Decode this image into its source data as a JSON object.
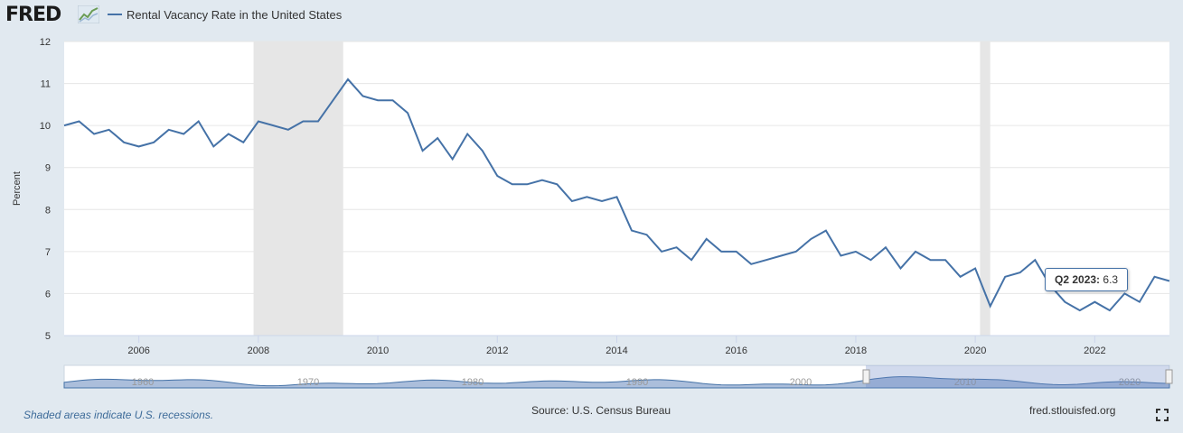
{
  "header": {
    "logo_text": "FRED",
    "legend_label": "Rental Vacancy Rate in the United States"
  },
  "tooltip": {
    "period": "Q2 2023:",
    "value": "6.3"
  },
  "footer": {
    "recession_note": "Shaded areas indicate U.S. recessions.",
    "source": "Source: U.S. Census Bureau",
    "site": "fred.stlouisfed.org"
  },
  "colors": {
    "series": "#4572a7",
    "recession": "#e6e6e6",
    "navigator_fill": "#8fa8cf"
  },
  "navigator": {
    "labels": [
      "1960",
      "1970",
      "1980",
      "1990",
      "2000",
      "2010",
      "2020"
    ]
  },
  "chart_data": {
    "type": "line",
    "title": "Rental Vacancy Rate in the United States",
    "ylabel": "Percent",
    "xlabel": "",
    "ylim": [
      5,
      12
    ],
    "xlim": [
      2004.75,
      2023.25
    ],
    "yticks": [
      5,
      6,
      7,
      8,
      9,
      10,
      11,
      12
    ],
    "xticks": [
      2006,
      2008,
      2010,
      2012,
      2014,
      2016,
      2018,
      2020,
      2022
    ],
    "recessions": [
      [
        2007.92,
        2009.42
      ],
      [
        2020.08,
        2020.25
      ]
    ],
    "series": [
      {
        "name": "Rental Vacancy Rate in the United States",
        "x": [
          2004.75,
          2005.0,
          2005.25,
          2005.5,
          2005.75,
          2006.0,
          2006.25,
          2006.5,
          2006.75,
          2007.0,
          2007.25,
          2007.5,
          2007.75,
          2008.0,
          2008.25,
          2008.5,
          2008.75,
          2009.0,
          2009.25,
          2009.5,
          2009.75,
          2010.0,
          2010.25,
          2010.5,
          2010.75,
          2011.0,
          2011.25,
          2011.5,
          2011.75,
          2012.0,
          2012.25,
          2012.5,
          2012.75,
          2013.0,
          2013.25,
          2013.5,
          2013.75,
          2014.0,
          2014.25,
          2014.5,
          2014.75,
          2015.0,
          2015.25,
          2015.5,
          2015.75,
          2016.0,
          2016.25,
          2016.5,
          2016.75,
          2017.0,
          2017.25,
          2017.5,
          2017.75,
          2018.0,
          2018.25,
          2018.5,
          2018.75,
          2019.0,
          2019.25,
          2019.5,
          2019.75,
          2020.0,
          2020.25,
          2020.5,
          2020.75,
          2021.0,
          2021.25,
          2021.5,
          2021.75,
          2022.0,
          2022.25,
          2022.5,
          2022.75,
          2023.0,
          2023.25
        ],
        "values": [
          10.0,
          10.1,
          9.8,
          9.9,
          9.6,
          9.5,
          9.6,
          9.9,
          9.8,
          10.1,
          9.5,
          9.8,
          9.6,
          10.1,
          10.0,
          9.9,
          10.1,
          10.1,
          10.6,
          11.1,
          10.7,
          10.6,
          10.6,
          10.3,
          9.4,
          9.7,
          9.2,
          9.8,
          9.4,
          8.8,
          8.6,
          8.6,
          8.7,
          8.6,
          8.2,
          8.3,
          8.2,
          8.3,
          7.5,
          7.4,
          7.0,
          7.1,
          6.8,
          7.3,
          7.0,
          7.0,
          6.7,
          6.8,
          6.9,
          7.0,
          7.3,
          7.5,
          6.9,
          7.0,
          6.8,
          7.1,
          6.6,
          7.0,
          6.8,
          6.8,
          6.4,
          6.6,
          5.7,
          6.4,
          6.5,
          6.8,
          6.2,
          5.8,
          5.6,
          5.8,
          5.6,
          6.0,
          5.8,
          6.4,
          6.3
        ]
      }
    ]
  }
}
